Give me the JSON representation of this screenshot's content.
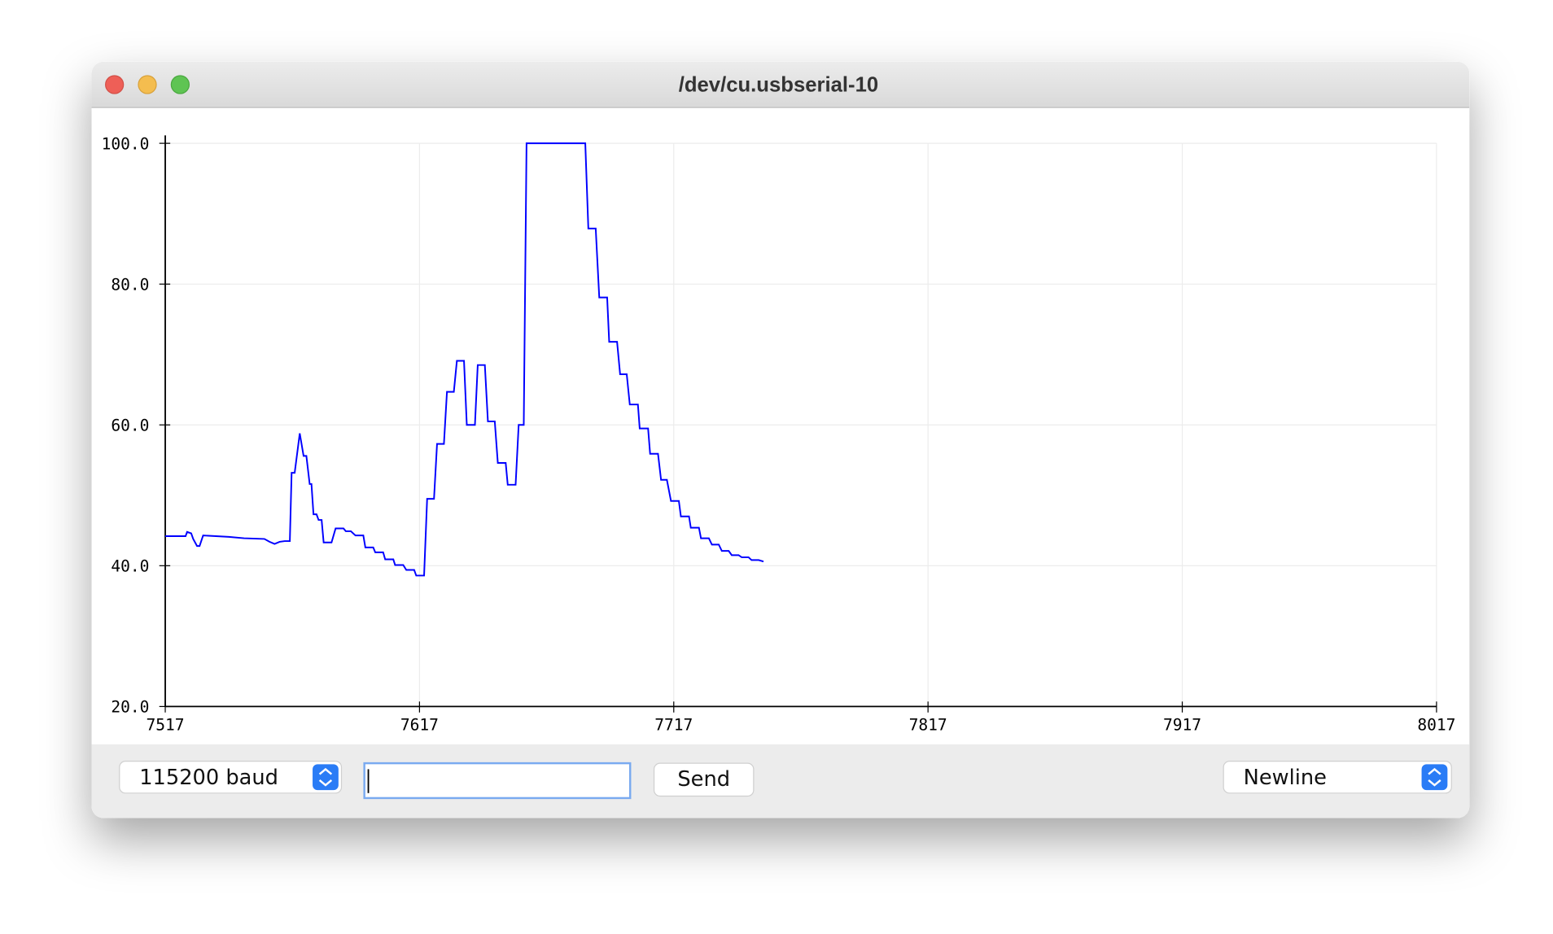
{
  "window": {
    "title": "/dev/cu.usbserial-10"
  },
  "chart_data": {
    "type": "line",
    "color": "#0000ff",
    "grid": true,
    "xlim": [
      7517,
      8017
    ],
    "xticks": [
      7517,
      7617,
      7717,
      7817,
      7917,
      8017
    ],
    "ylim": [
      20,
      100
    ],
    "yticks": [
      {
        "value": 20,
        "label": "20.0"
      },
      {
        "value": 40,
        "label": "40.0"
      },
      {
        "value": 60,
        "label": "60.0"
      },
      {
        "value": 80,
        "label": "80.0"
      },
      {
        "value": 100,
        "label": "100.0"
      }
    ],
    "x": [
      7517,
      7525,
      7525.6,
      7527.2,
      7528,
      7529.5,
      7530.5,
      7531.9,
      7542,
      7548,
      7556,
      7558,
      7560,
      7562,
      7564,
      7566,
      7566.7,
      7567.9,
      7569.9,
      7571.4,
      7572.5,
      7573.8,
      7574.5,
      7575.3,
      7576.5,
      7577.3,
      7578.5,
      7579.3,
      7582.4,
      7584,
      7587.1,
      7588,
      7590,
      7591.8,
      7594.9,
      7595.7,
      7598.8,
      7599.6,
      7602.7,
      7603.5,
      7606.7,
      7607.4,
      7610.6,
      7611.8,
      7614.9,
      7615.7,
      7618.8,
      7620,
      7622.7,
      7623.9,
      7626.6,
      7627.8,
      7630.5,
      7631.7,
      7634.5,
      7635.6,
      7638.8,
      7639.9,
      7642.7,
      7643.9,
      7646.6,
      7647.8,
      7650.9,
      7651.7,
      7654.8,
      7656,
      7658,
      7659.1,
      7682.2,
      7683.4,
      7686.3,
      7687.7,
      7690.8,
      7691.6,
      7694.7,
      7695.9,
      7698.5,
      7699.7,
      7702.9,
      7703.6,
      7706.9,
      7707.7,
      7710.8,
      7712,
      7714.3,
      7715.9,
      7719,
      7719.8,
      7723,
      7723.7,
      7726.9,
      7727.7,
      7730.8,
      7732,
      7734.7,
      7735.9,
      7738.6,
      7739.8,
      7742.5,
      7743.7,
      7746.4,
      7747.6,
      7750.4,
      7752.3
    ],
    "values": [
      44.2,
      44.2,
      44.8,
      44.6,
      43.8,
      42.8,
      42.8,
      44.3,
      44.1,
      43.9,
      43.8,
      43.4,
      43.1,
      43.4,
      43.5,
      43.5,
      53.2,
      53.2,
      58.8,
      55.6,
      55.6,
      51.6,
      51.6,
      47.3,
      47.3,
      46.5,
      46.5,
      43.3,
      43.3,
      45.3,
      45.3,
      44.9,
      44.9,
      44.3,
      44.3,
      42.6,
      42.6,
      41.9,
      41.9,
      40.9,
      40.9,
      40.1,
      40.1,
      39.4,
      39.4,
      38.6,
      38.6,
      49.5,
      49.5,
      57.3,
      57.3,
      64.7,
      64.7,
      69.1,
      69.1,
      60.0,
      60.0,
      68.5,
      68.5,
      60.5,
      60.5,
      54.6,
      54.6,
      51.5,
      51.5,
      60.0,
      60.0,
      100,
      100,
      87.9,
      87.9,
      78.1,
      78.1,
      71.8,
      71.8,
      67.2,
      67.2,
      62.9,
      62.9,
      59.5,
      59.5,
      55.9,
      55.9,
      52.2,
      52.2,
      49.2,
      49.2,
      47.0,
      47.0,
      45.4,
      45.4,
      43.9,
      43.9,
      43.0,
      43.0,
      42.1,
      42.1,
      41.5,
      41.5,
      41.2,
      41.2,
      40.8,
      40.8,
      40.6
    ]
  },
  "controls": {
    "baud": "115200 baud",
    "send": "Send",
    "line_ending": "Newline"
  }
}
